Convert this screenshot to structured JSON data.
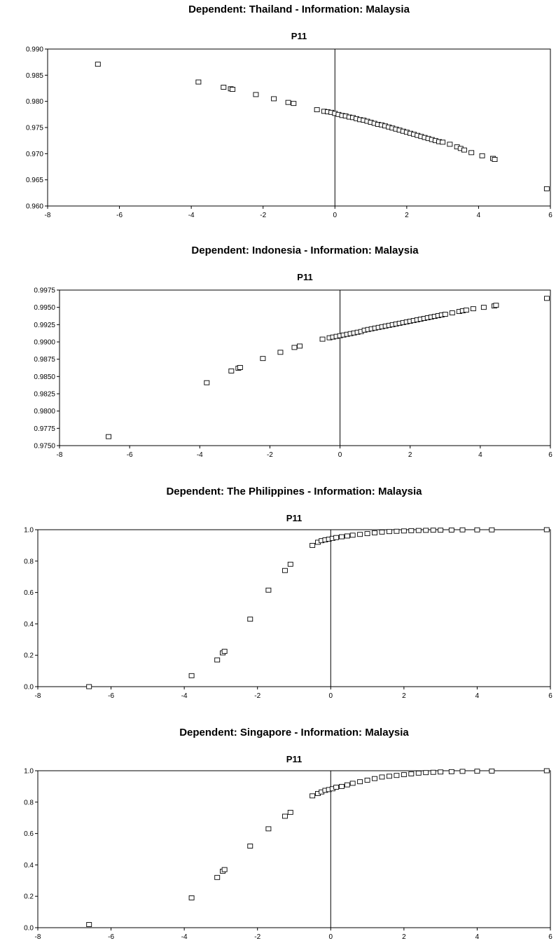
{
  "chart_data": [
    {
      "type": "scatter",
      "title": "Dependent: Thailand - Information: Malaysia",
      "subtitle": "P11",
      "xlim": [
        -8,
        6
      ],
      "ylim": [
        0.96,
        0.99
      ],
      "xticks": [
        "-8",
        "-6",
        "-4",
        "-2",
        "0",
        "2",
        "4",
        "6"
      ],
      "yticks": [
        "0.960",
        "0.965",
        "0.970",
        "0.975",
        "0.980",
        "0.985",
        "0.990"
      ],
      "marker": "open-square",
      "reference_line_x": 0,
      "grid": false,
      "points": [
        [
          -6.6,
          0.9871
        ],
        [
          -3.8,
          0.9837
        ],
        [
          -3.1,
          0.9827
        ],
        [
          -2.9,
          0.9824
        ],
        [
          -2.85,
          0.9823
        ],
        [
          -2.2,
          0.9813
        ],
        [
          -1.7,
          0.9805
        ],
        [
          -1.3,
          0.9798
        ],
        [
          -1.15,
          0.9796
        ],
        [
          -0.5,
          0.9784
        ],
        [
          -0.3,
          0.9781
        ],
        [
          -0.2,
          0.978
        ],
        [
          -0.1,
          0.9779
        ],
        [
          0.0,
          0.9777
        ],
        [
          0.1,
          0.9775
        ],
        [
          0.2,
          0.9773
        ],
        [
          0.3,
          0.9772
        ],
        [
          0.4,
          0.977
        ],
        [
          0.5,
          0.9769
        ],
        [
          0.6,
          0.9767
        ],
        [
          0.7,
          0.9765
        ],
        [
          0.8,
          0.9764
        ],
        [
          0.9,
          0.9762
        ],
        [
          1.0,
          0.976
        ],
        [
          1.1,
          0.9758
        ],
        [
          1.2,
          0.9756
        ],
        [
          1.3,
          0.9755
        ],
        [
          1.4,
          0.9753
        ],
        [
          1.5,
          0.9751
        ],
        [
          1.6,
          0.9749
        ],
        [
          1.7,
          0.9747
        ],
        [
          1.8,
          0.9745
        ],
        [
          1.9,
          0.9743
        ],
        [
          2.0,
          0.9741
        ],
        [
          2.1,
          0.9739
        ],
        [
          2.2,
          0.9737
        ],
        [
          2.3,
          0.9735
        ],
        [
          2.4,
          0.9733
        ],
        [
          2.5,
          0.9731
        ],
        [
          2.6,
          0.9729
        ],
        [
          2.7,
          0.9727
        ],
        [
          2.8,
          0.9725
        ],
        [
          2.9,
          0.9723
        ],
        [
          3.0,
          0.9722
        ],
        [
          3.2,
          0.9718
        ],
        [
          3.4,
          0.9713
        ],
        [
          3.5,
          0.971
        ],
        [
          3.6,
          0.9707
        ],
        [
          3.8,
          0.9702
        ],
        [
          4.1,
          0.9696
        ],
        [
          4.4,
          0.9691
        ],
        [
          4.45,
          0.9689
        ],
        [
          5.9,
          0.9633
        ]
      ]
    },
    {
      "type": "scatter",
      "title": "Dependent: Indonesia - Information: Malaysia",
      "subtitle": "P11",
      "xlim": [
        -8,
        6
      ],
      "ylim": [
        0.975,
        0.9975
      ],
      "xticks": [
        "-8",
        "-6",
        "-4",
        "-2",
        "0",
        "2",
        "4",
        "6"
      ],
      "yticks": [
        "0.9750",
        "0.9775",
        "0.9800",
        "0.9825",
        "0.9850",
        "0.9875",
        "0.9900",
        "0.9925",
        "0.9950",
        "0.9975"
      ],
      "marker": "open-square",
      "reference_line_x": 0,
      "grid": false,
      "points": [
        [
          -6.6,
          0.9763
        ],
        [
          -3.8,
          0.9841
        ],
        [
          -3.1,
          0.9858
        ],
        [
          -2.9,
          0.9862
        ],
        [
          -2.85,
          0.9863
        ],
        [
          -2.2,
          0.9876
        ],
        [
          -1.7,
          0.9885
        ],
        [
          -1.3,
          0.9892
        ],
        [
          -1.15,
          0.9894
        ],
        [
          -0.5,
          0.9904
        ],
        [
          -0.3,
          0.9906
        ],
        [
          -0.2,
          0.9907
        ],
        [
          -0.1,
          0.9908
        ],
        [
          0.0,
          0.9909
        ],
        [
          0.1,
          0.991
        ],
        [
          0.2,
          0.9911
        ],
        [
          0.3,
          0.9912
        ],
        [
          0.4,
          0.9913
        ],
        [
          0.5,
          0.9914
        ],
        [
          0.6,
          0.9915
        ],
        [
          0.7,
          0.9917
        ],
        [
          0.8,
          0.9918
        ],
        [
          0.9,
          0.9919
        ],
        [
          1.0,
          0.992
        ],
        [
          1.1,
          0.9921
        ],
        [
          1.2,
          0.9922
        ],
        [
          1.3,
          0.9923
        ],
        [
          1.4,
          0.9924
        ],
        [
          1.5,
          0.9925
        ],
        [
          1.6,
          0.9926
        ],
        [
          1.7,
          0.9927
        ],
        [
          1.8,
          0.9928
        ],
        [
          1.9,
          0.9929
        ],
        [
          2.0,
          0.993
        ],
        [
          2.1,
          0.9931
        ],
        [
          2.2,
          0.9932
        ],
        [
          2.3,
          0.9933
        ],
        [
          2.4,
          0.9934
        ],
        [
          2.5,
          0.9935
        ],
        [
          2.6,
          0.9936
        ],
        [
          2.7,
          0.9937
        ],
        [
          2.8,
          0.9938
        ],
        [
          2.9,
          0.9939
        ],
        [
          3.0,
          0.994
        ],
        [
          3.2,
          0.9942
        ],
        [
          3.4,
          0.9944
        ],
        [
          3.5,
          0.9945
        ],
        [
          3.6,
          0.9946
        ],
        [
          3.8,
          0.9948
        ],
        [
          4.1,
          0.995
        ],
        [
          4.4,
          0.9952
        ],
        [
          4.45,
          0.9953
        ],
        [
          5.9,
          0.9963
        ]
      ]
    },
    {
      "type": "scatter",
      "title": "Dependent: The Philippines - Information: Malaysia",
      "subtitle": "P11",
      "xlim": [
        -8,
        6
      ],
      "ylim": [
        0.0,
        1.0
      ],
      "xticks": [
        "-8",
        "-6",
        "-4",
        "-2",
        "0",
        "2",
        "4",
        "6"
      ],
      "yticks": [
        "0.0",
        "0.2",
        "0.4",
        "0.6",
        "0.8",
        "1.0"
      ],
      "marker": "open-square",
      "reference_line_x": 0,
      "grid": false,
      "points": [
        [
          -6.6,
          0.0
        ],
        [
          -3.8,
          0.07
        ],
        [
          -3.1,
          0.17
        ],
        [
          -2.95,
          0.215
        ],
        [
          -2.9,
          0.225
        ],
        [
          -2.2,
          0.43
        ],
        [
          -1.7,
          0.615
        ],
        [
          -1.25,
          0.74
        ],
        [
          -1.1,
          0.78
        ],
        [
          -0.5,
          0.9
        ],
        [
          -0.35,
          0.92
        ],
        [
          -0.25,
          0.93
        ],
        [
          -0.15,
          0.935
        ],
        [
          -0.05,
          0.94
        ],
        [
          0.05,
          0.945
        ],
        [
          0.15,
          0.95
        ],
        [
          0.3,
          0.955
        ],
        [
          0.45,
          0.96
        ],
        [
          0.6,
          0.965
        ],
        [
          0.8,
          0.97
        ],
        [
          1.0,
          0.975
        ],
        [
          1.2,
          0.98
        ],
        [
          1.4,
          0.985
        ],
        [
          1.6,
          0.988
        ],
        [
          1.8,
          0.99
        ],
        [
          2.0,
          0.992
        ],
        [
          2.2,
          0.994
        ],
        [
          2.4,
          0.995
        ],
        [
          2.6,
          0.996
        ],
        [
          2.8,
          0.997
        ],
        [
          3.0,
          0.997
        ],
        [
          3.3,
          0.998
        ],
        [
          3.6,
          0.999
        ],
        [
          4.0,
          0.999
        ],
        [
          4.4,
          0.999
        ],
        [
          5.9,
          1.0
        ]
      ]
    },
    {
      "type": "scatter",
      "title": "Dependent: Singapore - Information: Malaysia",
      "subtitle": "P11",
      "xlim": [
        -8,
        6
      ],
      "ylim": [
        0.0,
        1.0
      ],
      "xticks": [
        "-8",
        "-6",
        "-4",
        "-2",
        "0",
        "2",
        "4",
        "6"
      ],
      "yticks": [
        "0.0",
        "0.2",
        "0.4",
        "0.6",
        "0.8",
        "1.0"
      ],
      "marker": "open-square",
      "reference_line_x": 0,
      "grid": false,
      "points": [
        [
          -6.6,
          0.02
        ],
        [
          -3.8,
          0.19
        ],
        [
          -3.1,
          0.32
        ],
        [
          -2.95,
          0.36
        ],
        [
          -2.9,
          0.37
        ],
        [
          -2.2,
          0.52
        ],
        [
          -1.7,
          0.63
        ],
        [
          -1.25,
          0.71
        ],
        [
          -1.1,
          0.735
        ],
        [
          -0.5,
          0.84
        ],
        [
          -0.35,
          0.855
        ],
        [
          -0.25,
          0.865
        ],
        [
          -0.15,
          0.875
        ],
        [
          -0.05,
          0.88
        ],
        [
          0.05,
          0.885
        ],
        [
          0.15,
          0.895
        ],
        [
          0.3,
          0.9
        ],
        [
          0.45,
          0.91
        ],
        [
          0.6,
          0.92
        ],
        [
          0.8,
          0.93
        ],
        [
          1.0,
          0.94
        ],
        [
          1.2,
          0.95
        ],
        [
          1.4,
          0.96
        ],
        [
          1.6,
          0.965
        ],
        [
          1.8,
          0.97
        ],
        [
          2.0,
          0.975
        ],
        [
          2.2,
          0.98
        ],
        [
          2.4,
          0.985
        ],
        [
          2.6,
          0.988
        ],
        [
          2.8,
          0.99
        ],
        [
          3.0,
          0.992
        ],
        [
          3.3,
          0.994
        ],
        [
          3.6,
          0.996
        ],
        [
          4.0,
          0.997
        ],
        [
          4.4,
          0.998
        ],
        [
          5.9,
          1.0
        ]
      ]
    }
  ]
}
